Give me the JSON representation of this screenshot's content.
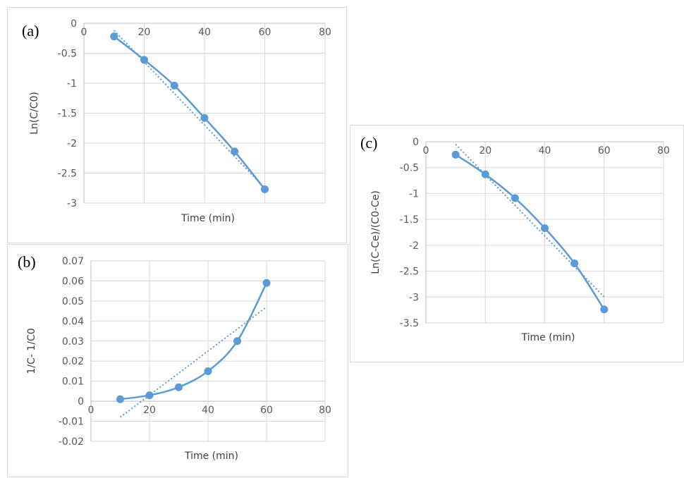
{
  "colors": {
    "series": "#5b9bd5",
    "trend": "#5b9bd5",
    "grid": "#d9d9d9",
    "text": "#595959"
  },
  "chart_data": [
    {
      "id": "a",
      "type": "line",
      "panel_label": "(a)",
      "title": "",
      "xlabel": "Time (min)",
      "ylabel": "Ln(C/C0)",
      "xlim": [
        0,
        80
      ],
      "ylim": [
        -3,
        0
      ],
      "xticks": [
        0,
        20,
        40,
        60,
        80
      ],
      "yticks": [
        0,
        -0.5,
        -1,
        -1.5,
        -2,
        -2.5,
        -3
      ],
      "xtick_labels": [
        "0",
        "20",
        "40",
        "60",
        "80"
      ],
      "ytick_labels": [
        "0",
        "-0.5",
        "-1",
        "-1.5",
        "-2",
        "-2.5",
        "-3"
      ],
      "grid": true,
      "x_axis_at_top": true,
      "series": [
        {
          "x": [
            10,
            20,
            30,
            40,
            50,
            60
          ],
          "y": [
            -0.22,
            -0.61,
            -1.04,
            -1.58,
            -2.14,
            -2.77
          ]
        }
      ],
      "trendline": {
        "x": [
          10,
          60
        ],
        "y": [
          -0.12,
          -2.75
        ]
      }
    },
    {
      "id": "b",
      "type": "line",
      "panel_label": "(b)",
      "title": "",
      "xlabel": "Time (min)",
      "ylabel": "1/C- 1/C0",
      "xlim": [
        0,
        80
      ],
      "ylim": [
        -0.02,
        0.07
      ],
      "xticks": [
        0,
        20,
        40,
        60,
        80
      ],
      "yticks": [
        0.07,
        0.06,
        0.05,
        0.04,
        0.03,
        0.02,
        0.01,
        0,
        -0.01,
        -0.02
      ],
      "xtick_labels": [
        "0",
        "20",
        "40",
        "60",
        "80"
      ],
      "ytick_labels": [
        "0.07",
        "0.06",
        "0.05",
        "0.04",
        "0.03",
        "0.02",
        "0.01",
        "0",
        "-0.01",
        "-0.02"
      ],
      "grid": true,
      "x_axis_at_top": false,
      "series": [
        {
          "x": [
            10,
            20,
            30,
            40,
            50,
            60
          ],
          "y": [
            0.001,
            0.003,
            0.007,
            0.015,
            0.03,
            0.059
          ]
        }
      ],
      "trendline": {
        "x": [
          10,
          60
        ],
        "y": [
          -0.008,
          0.047
        ]
      }
    },
    {
      "id": "c",
      "type": "line",
      "panel_label": "(c)",
      "title": "",
      "xlabel": "Time (min)",
      "ylabel": "Ln(C-Ce)/(C0-Ce)",
      "xlim": [
        0,
        80
      ],
      "ylim": [
        -3.5,
        0
      ],
      "xticks": [
        0,
        20,
        40,
        60,
        80
      ],
      "yticks": [
        0,
        -0.5,
        -1,
        -1.5,
        -2,
        -2.5,
        -3,
        -3.5
      ],
      "xtick_labels": [
        "0",
        "20",
        "40",
        "60",
        "80"
      ],
      "ytick_labels": [
        "0",
        "-0.5",
        "-1",
        "-1.5",
        "-2",
        "-2.5",
        "-3",
        "-3.5"
      ],
      "grid": true,
      "x_axis_at_top": true,
      "series": [
        {
          "x": [
            10,
            20,
            30,
            40,
            50,
            60
          ],
          "y": [
            -0.25,
            -0.63,
            -1.09,
            -1.67,
            -2.35,
            -3.24
          ]
        }
      ],
      "trendline": {
        "x": [
          10,
          60
        ],
        "y": [
          -0.05,
          -3.0
        ]
      }
    }
  ]
}
